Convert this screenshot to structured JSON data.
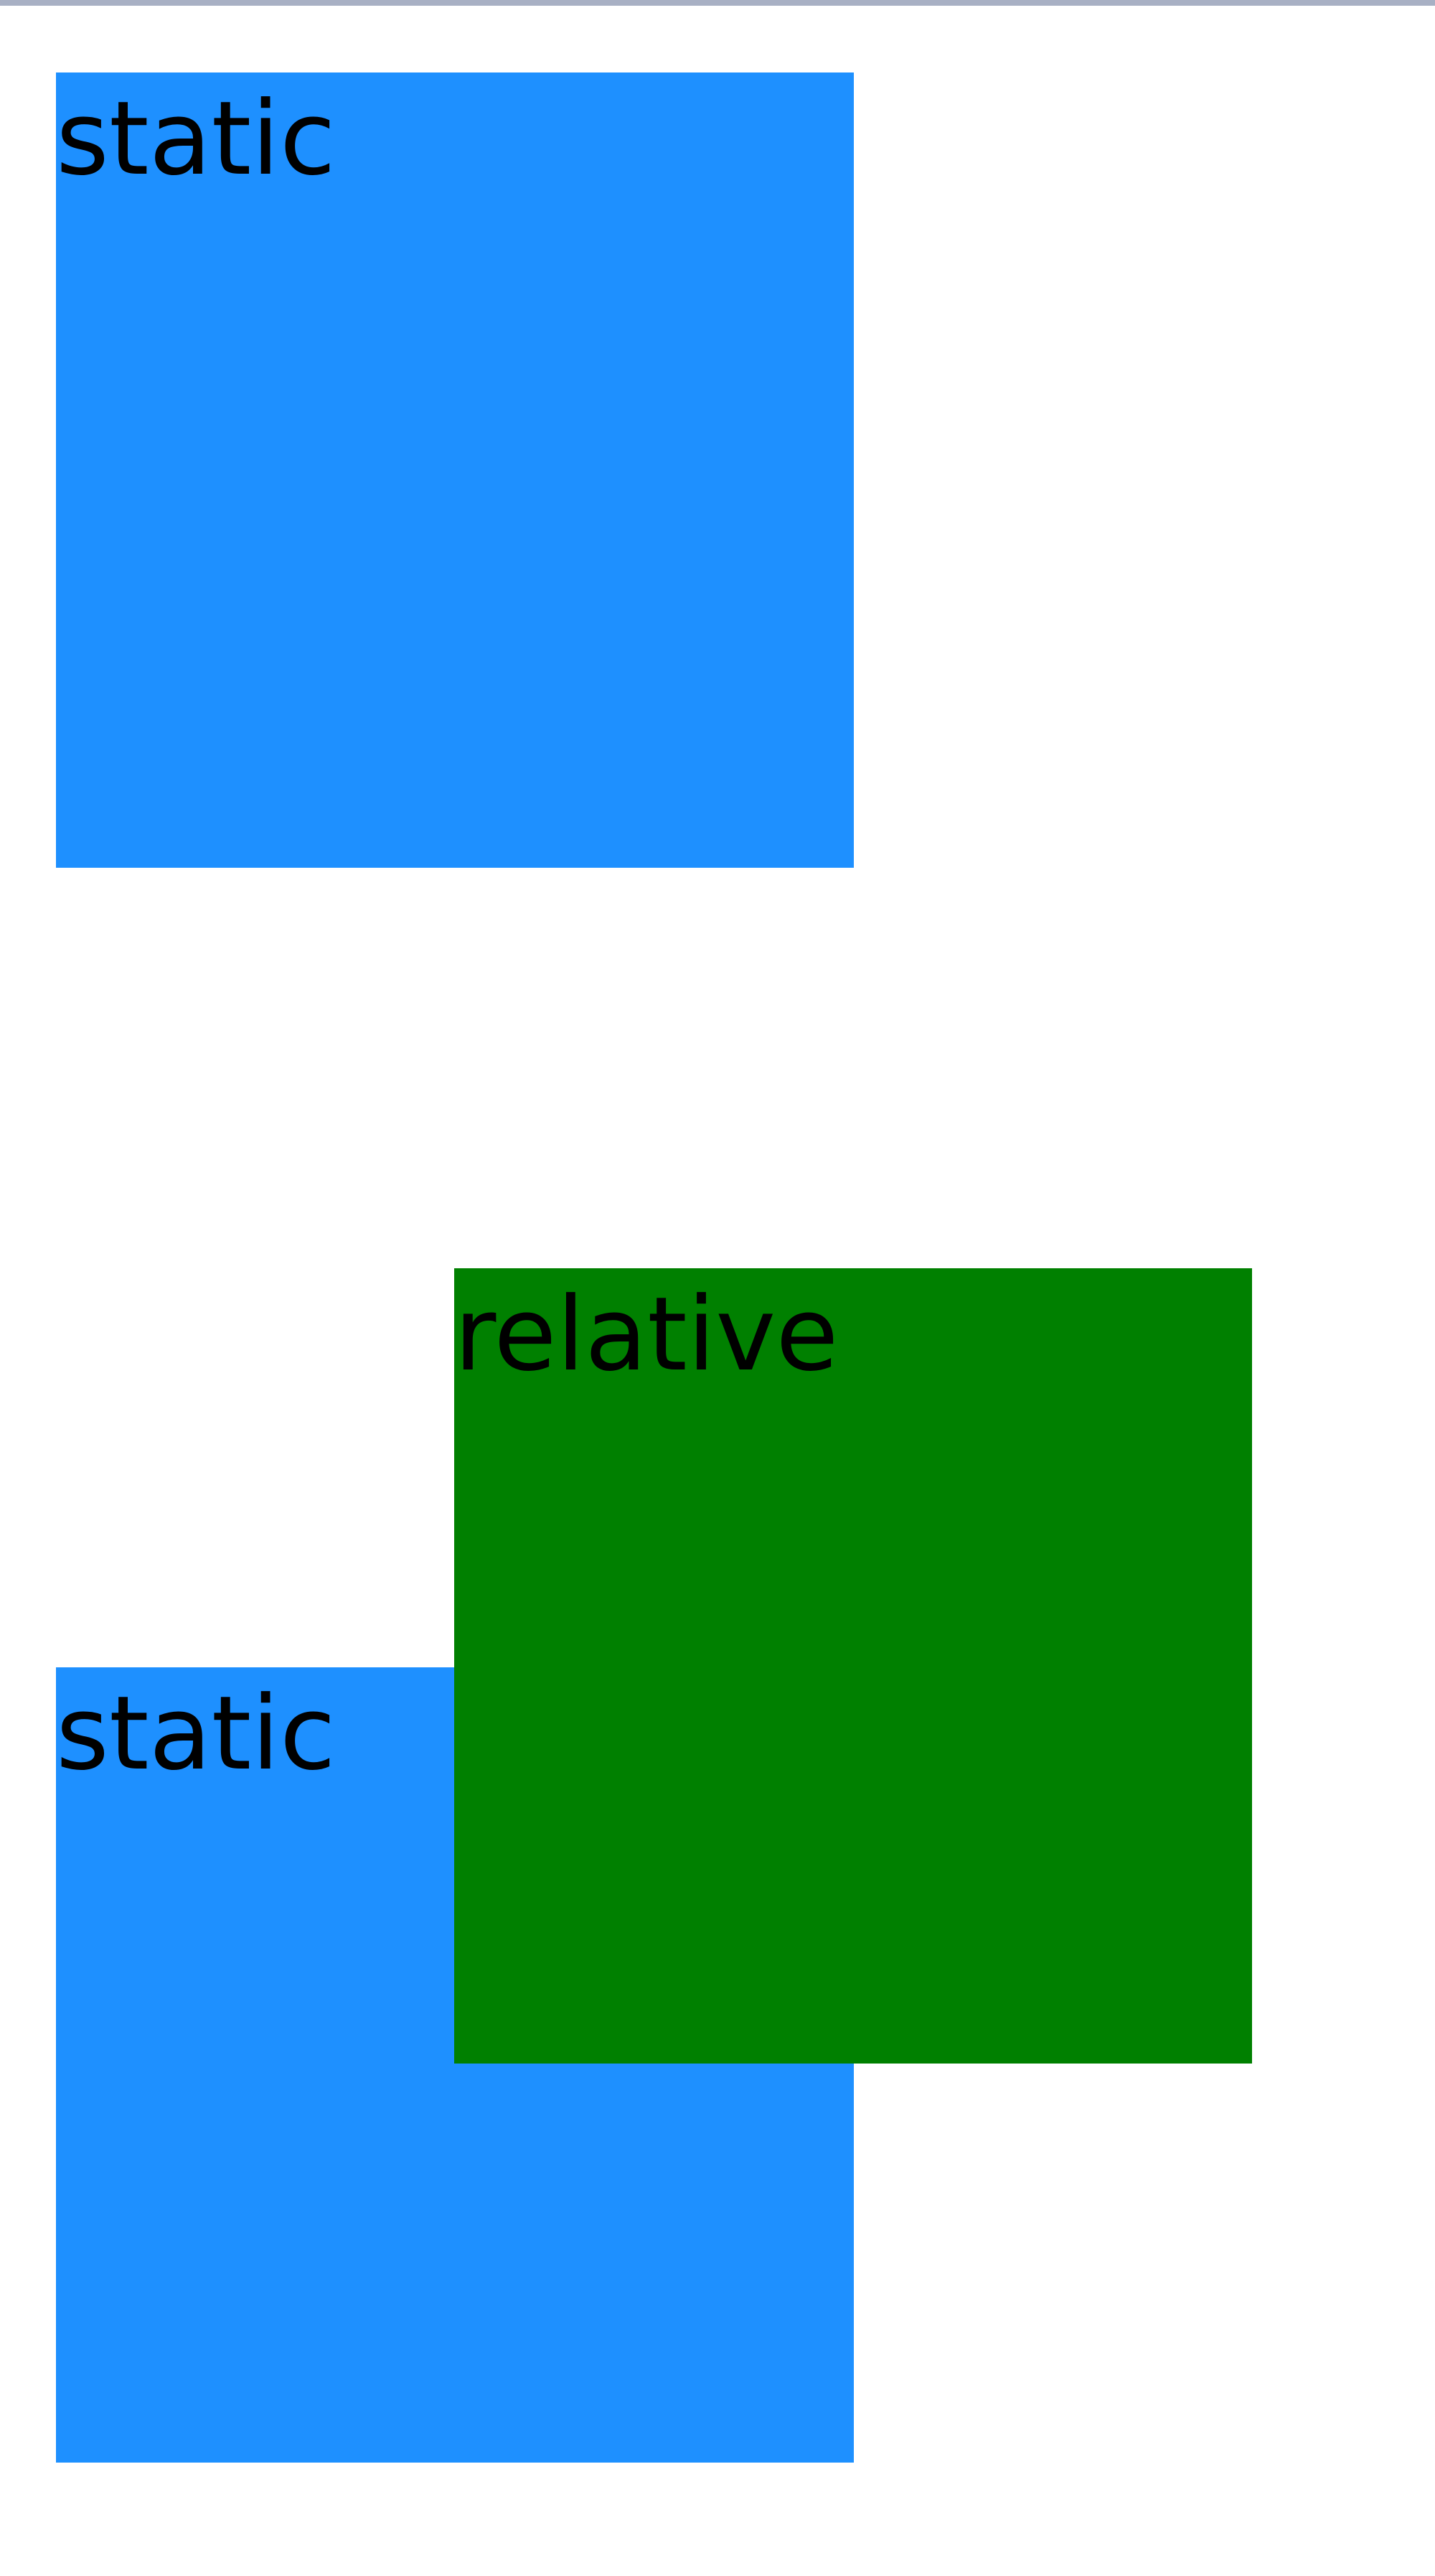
{
  "boxes": {
    "first_static_label": "static",
    "second_static_label": "static",
    "relative_label": "relative"
  },
  "colors": {
    "static_box": "#1e90ff",
    "relative_box": "#008000",
    "top_border": "#a8b0c4"
  }
}
